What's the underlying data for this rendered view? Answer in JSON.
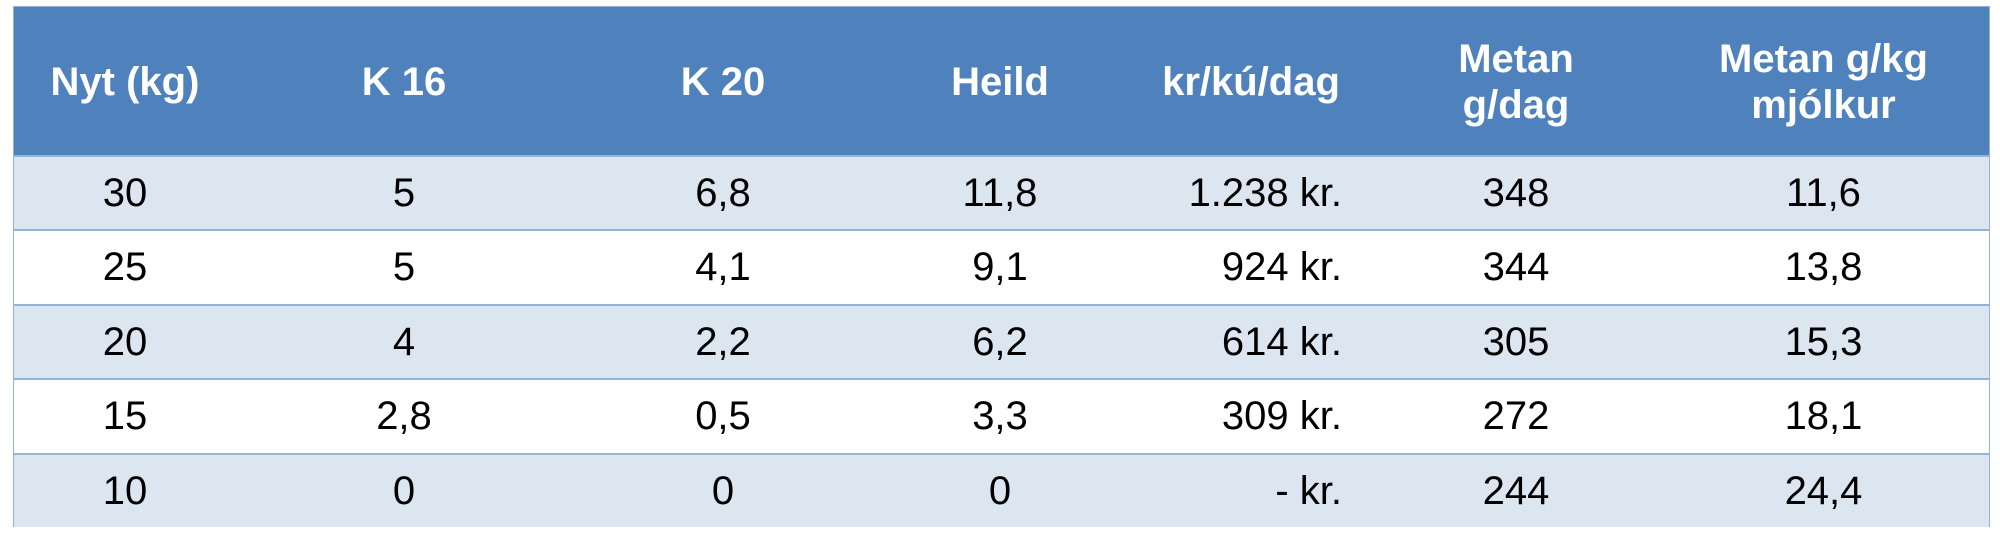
{
  "table": {
    "header": [
      "Nyt (kg)",
      "K 16",
      "K 20",
      "Heild",
      "kr/kú/dag",
      "Metan g/dag",
      "Metan g/kg mjólkur"
    ],
    "rows": [
      [
        "30",
        "5",
        "6,8",
        "11,8",
        "1.238 kr.",
        "348",
        "11,6"
      ],
      [
        "25",
        "5",
        "4,1",
        "9,1",
        "924 kr.",
        "344",
        "13,8"
      ],
      [
        "20",
        "4",
        "2,2",
        "6,2",
        "614 kr.",
        "305",
        "15,3"
      ],
      [
        "15",
        "2,8",
        "0,5",
        "3,3",
        "309 kr.",
        "272",
        "18,1"
      ],
      [
        "10",
        "0",
        "0",
        "0",
        "- kr.",
        "244",
        "24,4"
      ]
    ]
  }
}
